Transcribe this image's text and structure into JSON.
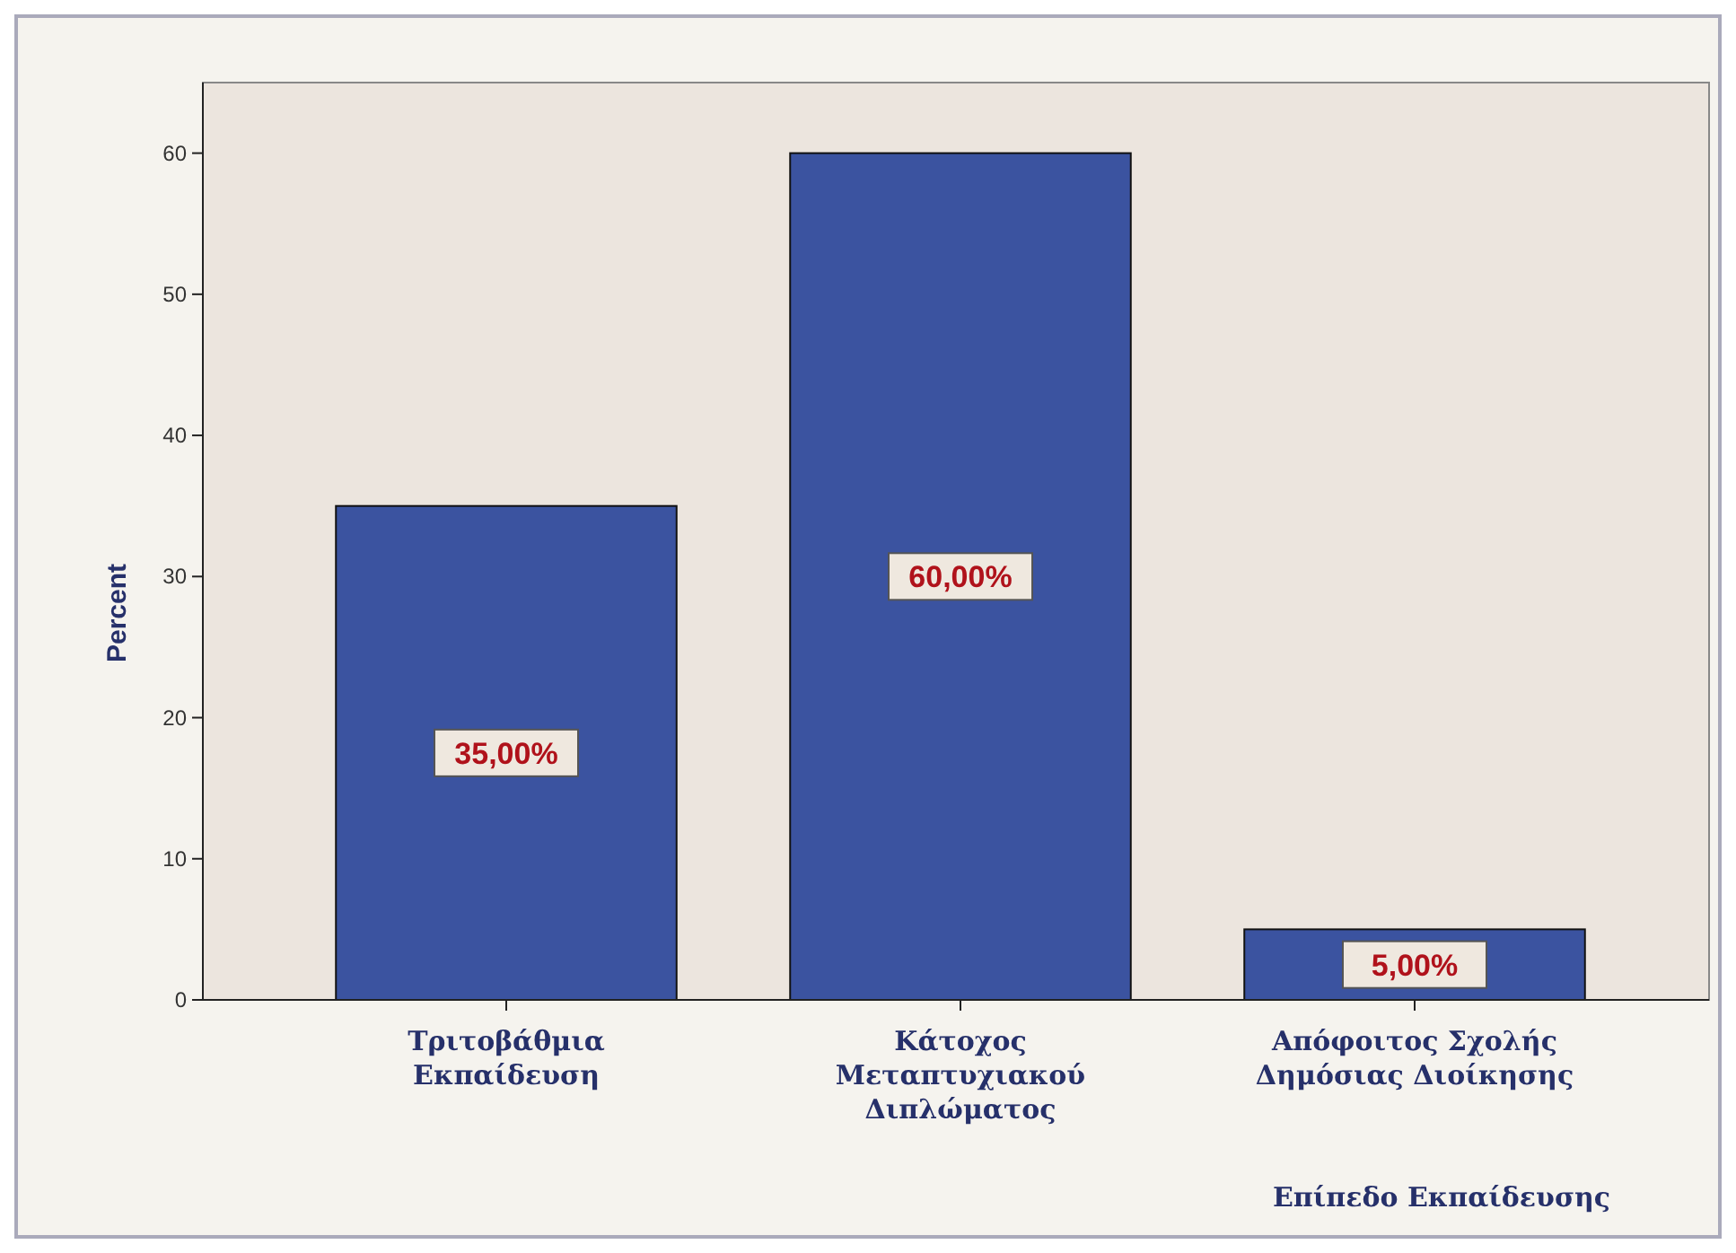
{
  "chart_data": {
    "type": "bar",
    "categories": [
      "Τριτοβάθμια Εκπαίδευση",
      "Κάτοχος Μεταπτυχιακού Διπλώματος",
      "Απόφοιτος Σχολής Δημόσιας Διοίκησης"
    ],
    "values": [
      35,
      60,
      5
    ],
    "color": "#3b53a0",
    "value_labels": [
      "35,00%",
      "60,00%",
      "5,00%"
    ],
    "ylabel": "Percent",
    "xlabel": "Επίπεδο Εκπαίδευσης",
    "ylim": [
      0,
      65
    ],
    "yticks": [
      0,
      10,
      20,
      30,
      40,
      50,
      60
    ],
    "grid": false
  }
}
